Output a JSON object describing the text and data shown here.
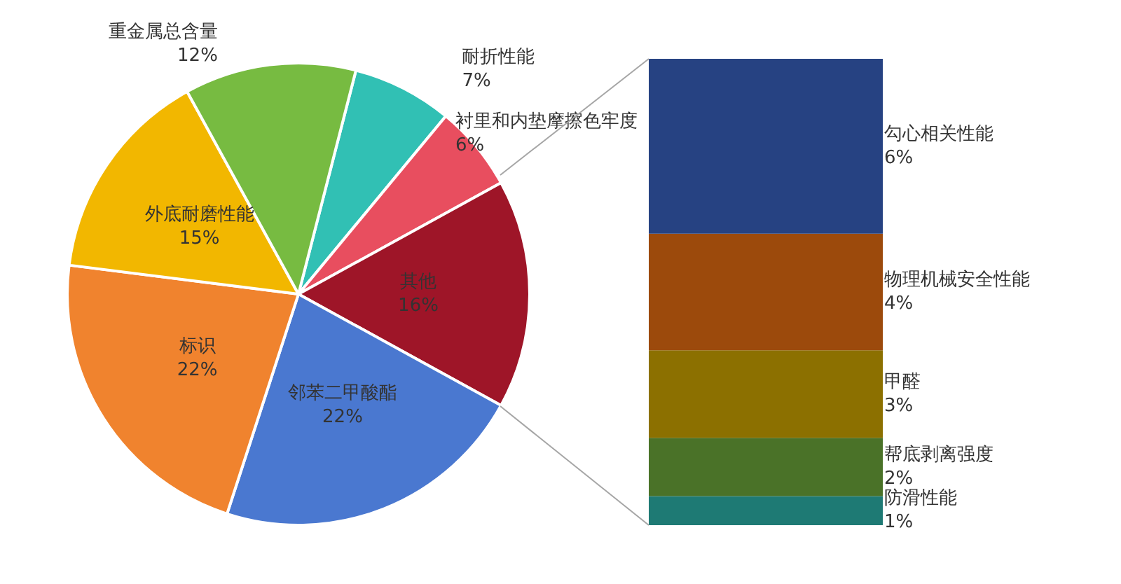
{
  "chart_data": [
    {
      "type": "pie",
      "categories": [
        "耐折性能",
        "衬里和内垫摩擦色牢度",
        "其他",
        "邻苯二甲酸酯",
        "标识",
        "外底耐磨性能",
        "重金属总含量"
      ],
      "values": [
        7,
        6,
        16,
        22,
        22,
        15,
        12
      ],
      "colors": [
        "#31c0b4",
        "#e84e5f",
        "#9e1528",
        "#4a78d0",
        "#f0832e",
        "#f2b700",
        "#77bb41"
      ],
      "value_labels": [
        "7%",
        "6%",
        "16%",
        "22%",
        "22%",
        "15%",
        "12%"
      ]
    },
    {
      "type": "bar",
      "stacked": true,
      "categories": [
        null
      ],
      "series": [
        {
          "name": "防滑性能",
          "color": "#1e7a74",
          "values": [
            1
          ],
          "value_labels": [
            "1%"
          ]
        },
        {
          "name": "帮底剥离强度",
          "color": "#4a7228",
          "values": [
            2
          ],
          "value_labels": [
            "2%"
          ]
        },
        {
          "name": "甲醛",
          "color": "#8c7000",
          "values": [
            3
          ],
          "value_labels": [
            "3%"
          ]
        },
        {
          "name": "物理机械安全性能",
          "color": "#9c4a0c",
          "values": [
            4
          ],
          "value_labels": [
            "4%"
          ]
        },
        {
          "name": "勾心相关性能",
          "color": "#264282",
          "values": [
            6
          ],
          "value_labels": [
            "6%"
          ]
        }
      ]
    }
  ]
}
